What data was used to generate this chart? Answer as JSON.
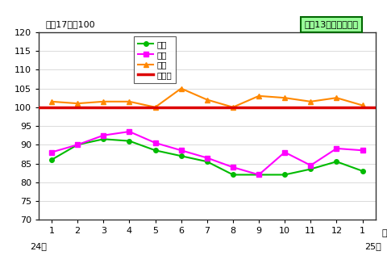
{
  "x_labels": [
    "1",
    "2",
    "3",
    "4",
    "5",
    "6",
    "7",
    "8",
    "9",
    "10",
    "11",
    "12",
    "1"
  ],
  "production": [
    86.0,
    90.0,
    91.5,
    91.0,
    88.5,
    87.0,
    85.5,
    82.0,
    82.0,
    82.0,
    83.5,
    85.5,
    83.0
  ],
  "shipment": [
    88.0,
    90.0,
    92.5,
    93.5,
    90.5,
    88.5,
    86.5,
    84.0,
    82.0,
    88.0,
    84.5,
    89.0,
    88.5
  ],
  "inventory": [
    101.5,
    101.0,
    101.5,
    101.5,
    100.0,
    105.0,
    102.0,
    100.0,
    103.0,
    102.5,
    101.5,
    102.5,
    100.5
  ],
  "baseline": 100.0,
  "ylim": [
    70,
    120
  ],
  "yticks": [
    70,
    75,
    80,
    85,
    90,
    95,
    100,
    105,
    110,
    115,
    120
  ],
  "production_color": "#00bb00",
  "shipment_color": "#ff00ff",
  "inventory_color": "#ff8800",
  "baseline_color": "#dd0000",
  "annotation_text": "平成17年＝100",
  "box_label": "最近13か月間の動き",
  "box_fill": "#99ff99",
  "box_edge": "#006600",
  "legend_labels": [
    "生産",
    "出荷",
    "在庫",
    "基準値"
  ],
  "xlabel_right": "月",
  "year_left": "24年",
  "year_right": "25年",
  "background_color": "#ffffff",
  "plot_bg": "#ffffff",
  "grid_color": "#cccccc",
  "spine_color": "#333333"
}
